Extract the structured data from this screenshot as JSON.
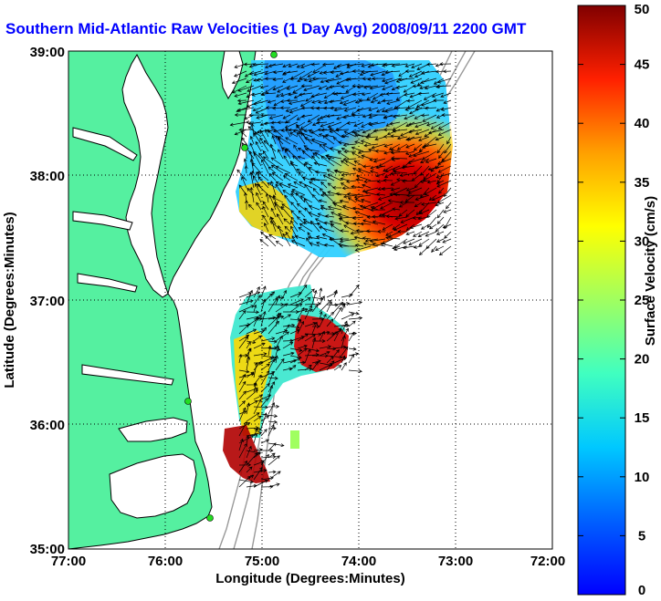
{
  "title": "Southern Mid-Atlantic Raw Velocities (1 Day Avg) 2008/09/11 2200 GMT",
  "map": {
    "xlabel": "Longitude (Degrees:Minutes)",
    "ylabel": "Latitude (Degrees:Minutes)",
    "lon_ticks": [
      "77:00",
      "76:00",
      "75:00",
      "74:00",
      "73:00",
      "72:00"
    ],
    "lat_ticks": [
      "39:00",
      "38:00",
      "37:00",
      "36:00",
      "35:00"
    ],
    "lon_range": [
      -77,
      -72
    ],
    "lat_range": [
      35,
      39
    ],
    "grid": "dotted",
    "land_color": "#55f0a0",
    "water_color": "#ffffff",
    "station_color": "#22dd22"
  },
  "colorbar": {
    "label": "Surface Velocity (cm/s)",
    "ticks": [
      "0",
      "5",
      "10",
      "15",
      "20",
      "25",
      "30",
      "35",
      "40",
      "45",
      "50"
    ],
    "range": [
      0,
      50
    ],
    "colormap": "jet"
  }
}
